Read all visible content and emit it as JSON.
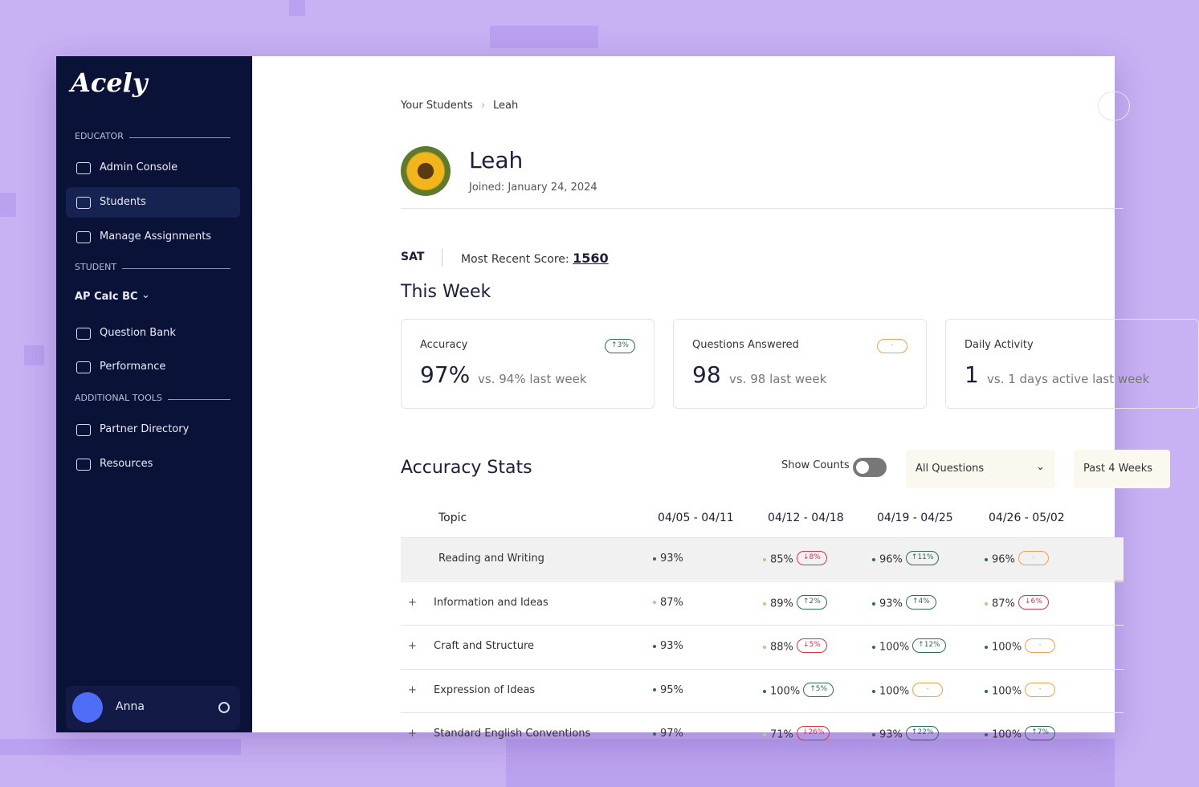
{
  "brand": "Acely",
  "sidebar": {
    "sections": [
      {
        "label": "EDUCATOR",
        "items": [
          "Admin Console",
          "Students",
          "Manage Assignments"
        ],
        "active": 1
      },
      {
        "label": "STUDENT",
        "course": "AP Calc BC",
        "items": [
          "Question Bank",
          "Performance"
        ]
      },
      {
        "label": "ADDITIONAL TOOLS",
        "items": [
          "Partner Directory",
          "Resources"
        ]
      }
    ],
    "user": "Anna"
  },
  "breadcrumb": [
    "Your Students",
    "Leah"
  ],
  "profile": {
    "name": "Leah",
    "joined": "Joined: January 24, 2024"
  },
  "test": {
    "name": "SAT",
    "score_label": "Most Recent Score:",
    "score": "1560"
  },
  "week": {
    "title": "This Week",
    "cards": [
      {
        "label": "Accuracy",
        "badge": "↑3%",
        "trend": "up",
        "value": "97%",
        "compare": "vs. 94% last week"
      },
      {
        "label": "Questions Answered",
        "badge": "-",
        "trend": "flat",
        "value": "98",
        "compare": "vs. 98 last week"
      },
      {
        "label": "Daily Activity",
        "value": "1",
        "compare": "vs. 1 days active last week"
      }
    ]
  },
  "stats": {
    "title": "Accuracy Stats",
    "toggle_label": "Show Counts",
    "filter": "All Questions",
    "period": "Past 4 Weeks",
    "columns": [
      "Topic",
      "04/05 - 04/11",
      "04/12 - 04/18",
      "04/19 - 04/25",
      "04/26 - 05/02"
    ],
    "rows": [
      {
        "expand": "",
        "topic": "Reading and Writing",
        "cells": [
          {
            "value": "93%",
            "dot": "dark"
          },
          {
            "value": "85%",
            "dot": "light",
            "delta": "↓8%",
            "trend": "down"
          },
          {
            "value": "96%",
            "dot": "dark",
            "delta": "↑11%",
            "trend": "up"
          },
          {
            "value": "96%",
            "dot": "dark",
            "delta": "-",
            "trend": "flat"
          }
        ]
      },
      {
        "expand": "+",
        "topic": "Information and Ideas",
        "cells": [
          {
            "value": "87%",
            "dot": "light"
          },
          {
            "value": "89%",
            "dot": "light",
            "delta": "↑2%",
            "trend": "up"
          },
          {
            "value": "93%",
            "dot": "dark",
            "delta": "↑4%",
            "trend": "up"
          },
          {
            "value": "87%",
            "dot": "light",
            "delta": "↓6%",
            "trend": "down"
          }
        ]
      },
      {
        "expand": "+",
        "topic": "Craft and Structure",
        "cells": [
          {
            "value": "93%",
            "dot": "dark"
          },
          {
            "value": "88%",
            "dot": "light",
            "delta": "↓5%",
            "trend": "down"
          },
          {
            "value": "100%",
            "dot": "dark",
            "delta": "↑12%",
            "trend": "up"
          },
          {
            "value": "100%",
            "dot": "dark",
            "delta": "-",
            "trend": "flat"
          }
        ]
      },
      {
        "expand": "+",
        "topic": "Expression of Ideas",
        "cells": [
          {
            "value": "95%",
            "dot": "dark"
          },
          {
            "value": "100%",
            "dot": "dark",
            "delta": "↑5%",
            "trend": "up"
          },
          {
            "value": "100%",
            "dot": "dark",
            "delta": "-",
            "trend": "flat"
          },
          {
            "value": "100%",
            "dot": "dark",
            "delta": "-",
            "trend": "flat"
          }
        ]
      },
      {
        "expand": "+",
        "topic": "Standard English Conventions",
        "cells": [
          {
            "value": "97%",
            "dot": "dark"
          },
          {
            "value": "71%",
            "dot": "light",
            "delta": "↓26%",
            "trend": "down"
          },
          {
            "value": "93%",
            "dot": "dark",
            "delta": "↑22%",
            "trend": "up"
          },
          {
            "value": "100%",
            "dot": "dark",
            "delta": "↑7%",
            "trend": "up"
          }
        ]
      }
    ]
  }
}
